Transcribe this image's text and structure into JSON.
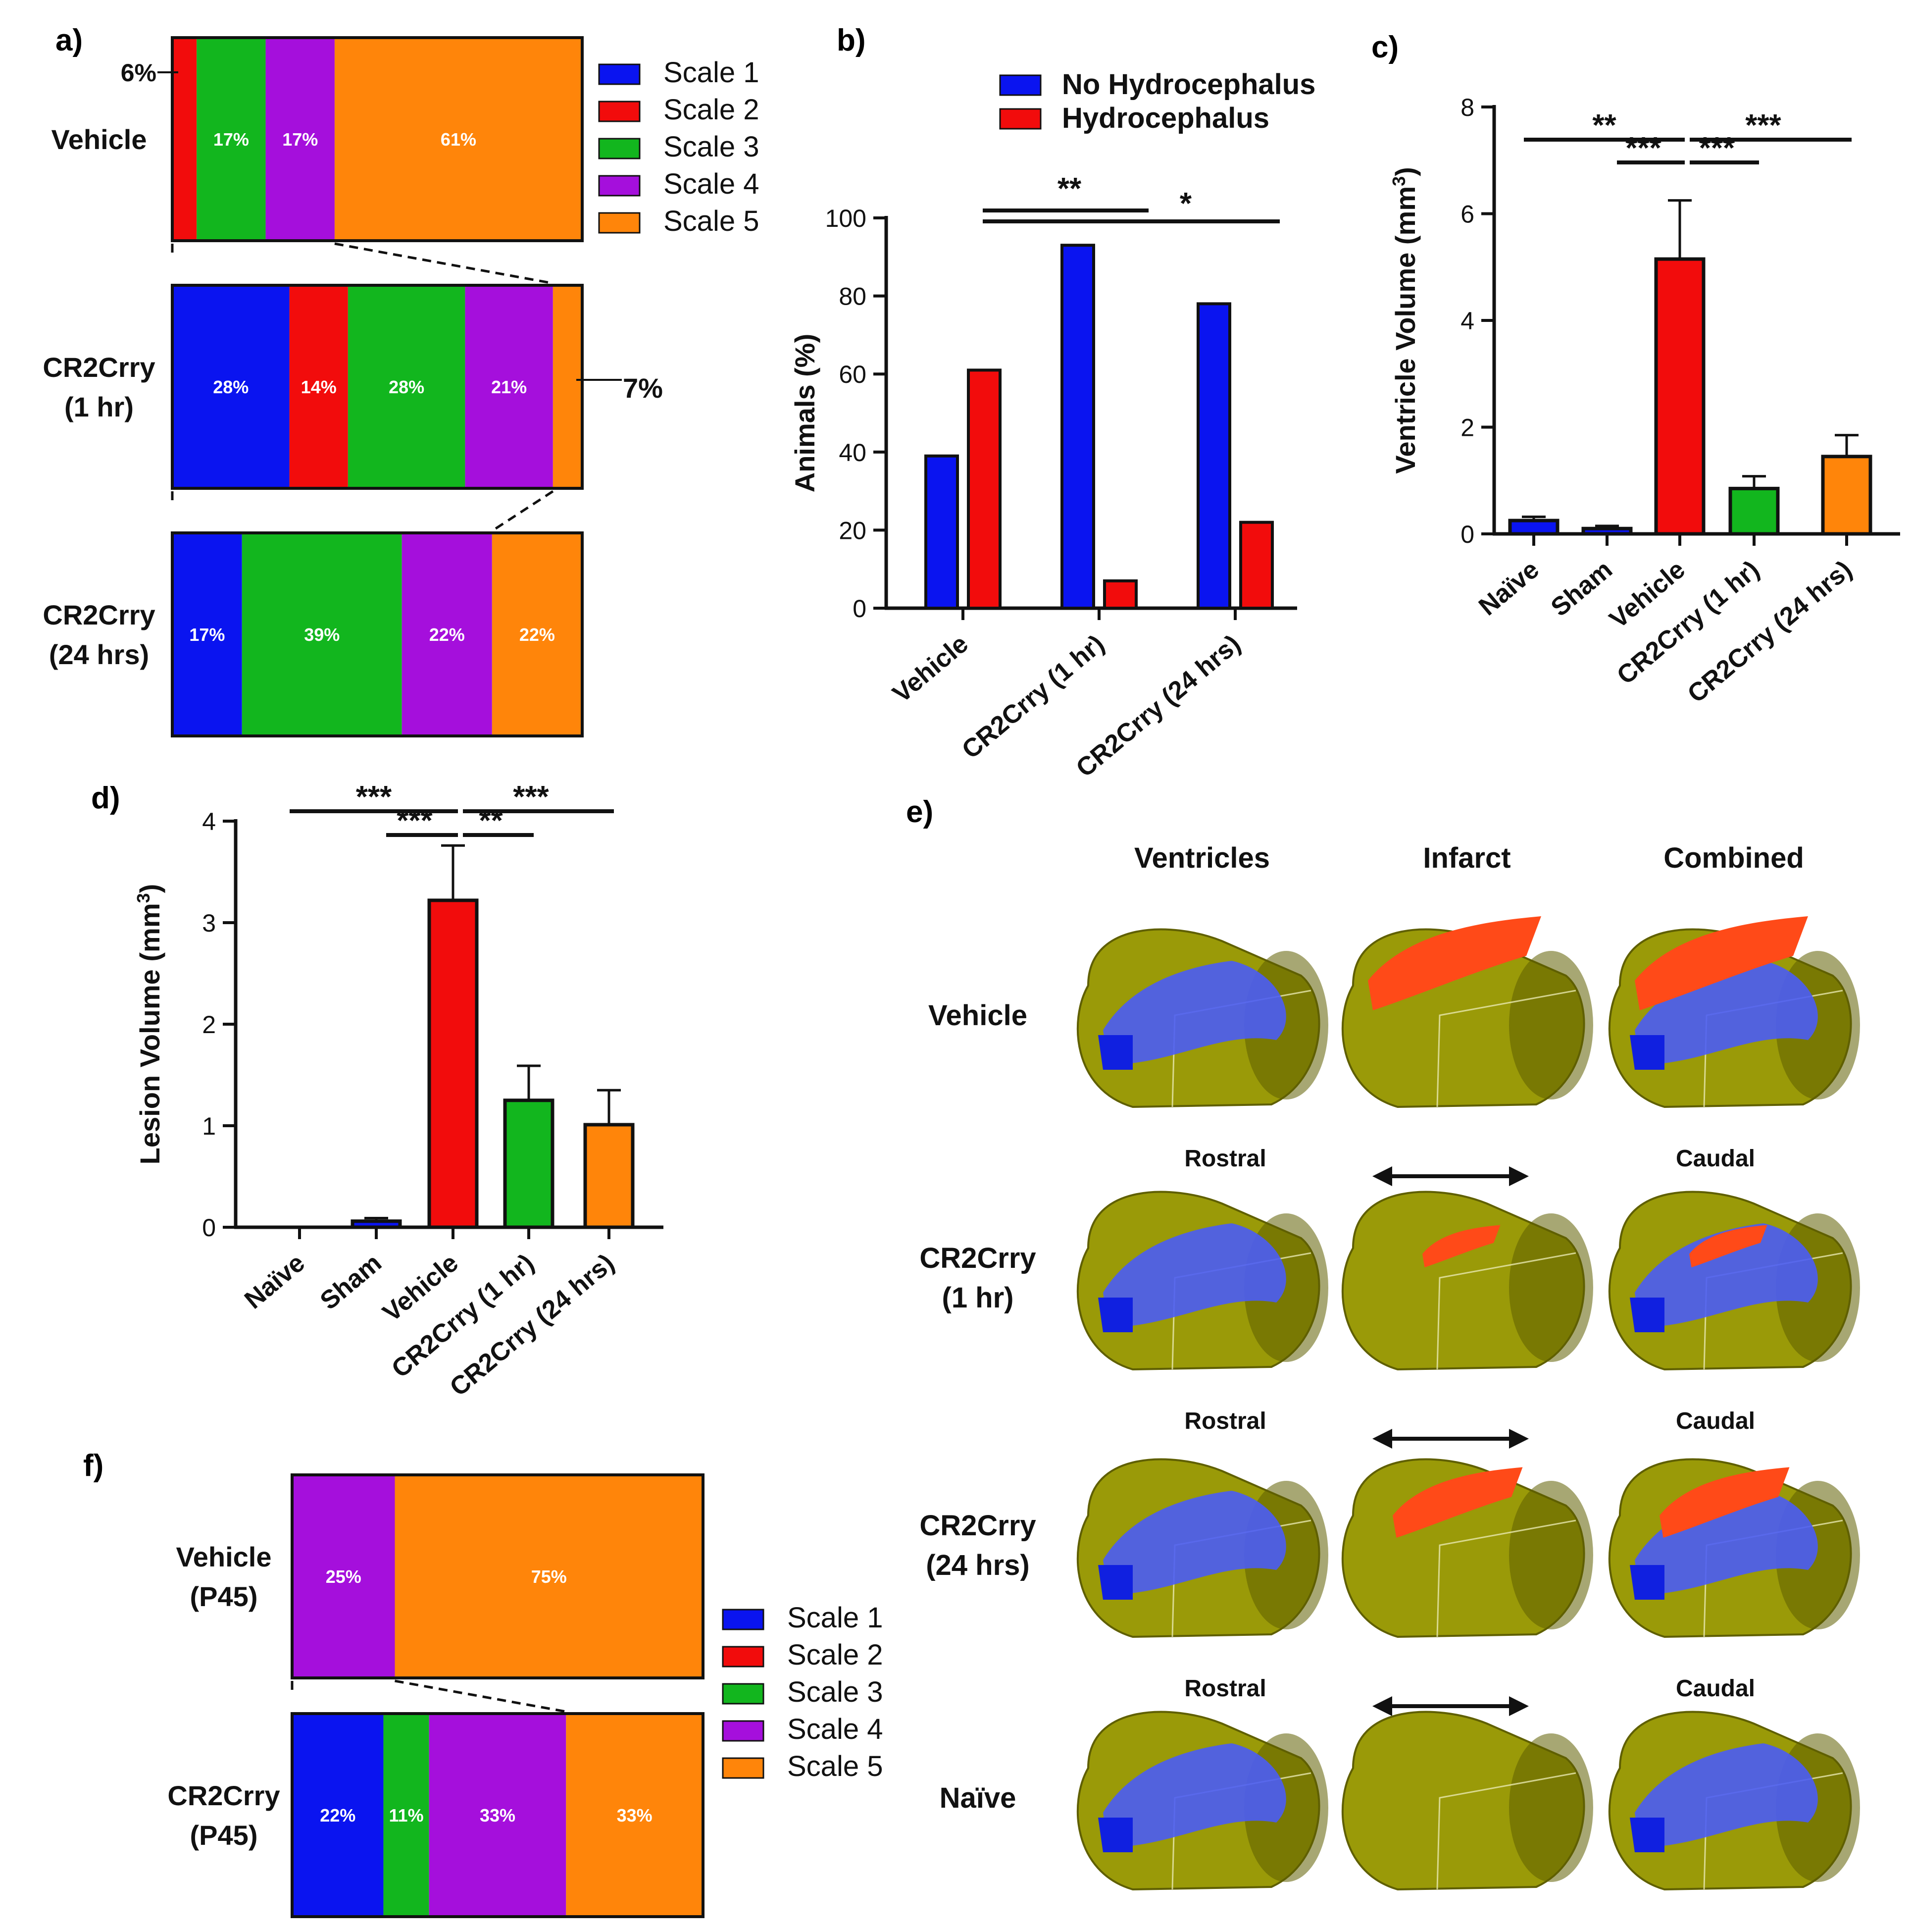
{
  "colors": {
    "scale1": "#0a14f0",
    "scale2": "#f20c0c",
    "scale3": "#12b61e",
    "scale4": "#a50fdc",
    "scale5": "#ff850a",
    "no_hydro": "#0a14f0",
    "hydro": "#f20c0c",
    "axis": "#111111",
    "brain": "#9a9a08",
    "brain_dark": "#5f5f00",
    "ventricle": "#4a5cf5",
    "infarct": "#ff4a18"
  },
  "panels": {
    "a": "a)",
    "b": "b)",
    "c": "c)",
    "d": "d)",
    "e": "e)",
    "f": "f)"
  },
  "chart_data": [
    {
      "id": "a",
      "type": "bar",
      "orientation": "horizontal-stacked-100",
      "legend": [
        "Scale 1",
        "Scale 2",
        "Scale 3",
        "Scale 4",
        "Scale 5"
      ],
      "legend_position": "right",
      "rows": [
        {
          "label": [
            "Vehicle"
          ],
          "values": [
            0,
            6,
            17,
            17,
            61
          ],
          "labels": [
            "",
            "",
            "17%",
            "17%",
            "61%"
          ],
          "callouts": [
            {
              "text": "6%",
              "side": "left"
            }
          ]
        },
        {
          "label": [
            "CR2Crry",
            "(1 hr)"
          ],
          "values": [
            28,
            14,
            28,
            21,
            7
          ],
          "labels": [
            "28%",
            "14%",
            "28%",
            "21%",
            ""
          ],
          "callouts": [
            {
              "text": "7%",
              "side": "right"
            }
          ]
        },
        {
          "label": [
            "CR2Crry",
            "(24 hrs)"
          ],
          "values": [
            17,
            0,
            39,
            22,
            22
          ],
          "labels": [
            "17%",
            "",
            "39%",
            "22%",
            "22%"
          ],
          "callouts": []
        }
      ]
    },
    {
      "id": "b",
      "type": "bar",
      "title": "",
      "xlabel": "",
      "ylabel": "Animals (%)",
      "ylim": [
        0,
        100
      ],
      "yticks": [
        0,
        20,
        40,
        60,
        80,
        100
      ],
      "categories": [
        "Vehicle",
        "CR2Crry (1 hr)",
        "CR2Crry (24 hrs)"
      ],
      "series": [
        {
          "name": "No Hydrocephalus",
          "values": [
            39,
            93,
            78
          ]
        },
        {
          "name": "Hydrocephalus",
          "values": [
            61,
            7,
            22
          ]
        }
      ],
      "legend_position": "top",
      "significance": [
        {
          "from": 0,
          "to": 1,
          "label": "**"
        },
        {
          "from": 0,
          "to": 2,
          "label": "*"
        }
      ]
    },
    {
      "id": "c",
      "type": "bar",
      "ylabel": "Ventricle Volume (mm",
      "ylabel_sup": "3",
      "ylabel_end": ")",
      "ylim": [
        0,
        8
      ],
      "yticks": [
        0,
        2,
        4,
        6,
        8
      ],
      "categories": [
        "Naïve",
        "Sham",
        "Vehicle",
        "CR2Crry (1 hr)",
        "CR2Crry (24 hrs)"
      ],
      "values": [
        0.25,
        0.1,
        5.15,
        0.85,
        1.45
      ],
      "errors": [
        0.07,
        0.05,
        1.1,
        0.23,
        0.4
      ],
      "bar_colors": [
        "scale1",
        "scale1",
        "hydro",
        "scale3",
        "scale5"
      ],
      "significance": [
        {
          "from": 0,
          "to": 2,
          "label": "**",
          "level": 2
        },
        {
          "from": 1,
          "to": 2,
          "label": "***",
          "level": 1
        },
        {
          "from": 2,
          "to": 3,
          "label": "***",
          "level": 1
        },
        {
          "from": 2,
          "to": 4,
          "label": "***",
          "level": 2
        }
      ]
    },
    {
      "id": "d",
      "type": "bar",
      "ylabel": "Lesion Volume (mm",
      "ylabel_sup": "3",
      "ylabel_end": ")",
      "ylim": [
        0,
        4
      ],
      "yticks": [
        0,
        1,
        2,
        3,
        4
      ],
      "categories": [
        "Naïve",
        "Sham",
        "Vehicle",
        "CR2Crry (1 hr)",
        "CR2Crry (24 hrs)"
      ],
      "values": [
        0,
        0.06,
        3.22,
        1.25,
        1.01
      ],
      "errors": [
        0,
        0.03,
        0.54,
        0.34,
        0.34
      ],
      "bar_colors": [
        "scale1",
        "scale1",
        "hydro",
        "scale3",
        "scale5"
      ],
      "significance": [
        {
          "from": 0,
          "to": 2,
          "label": "***",
          "level": 2
        },
        {
          "from": 1,
          "to": 2,
          "label": "***",
          "level": 1
        },
        {
          "from": 2,
          "to": 3,
          "label": "**",
          "level": 1
        },
        {
          "from": 2,
          "to": 4,
          "label": "***",
          "level": 2
        }
      ]
    },
    {
      "id": "f",
      "type": "bar",
      "orientation": "horizontal-stacked-100",
      "legend": [
        "Scale 1",
        "Scale 2",
        "Scale 3",
        "Scale 4",
        "Scale 5"
      ],
      "legend_position": "right",
      "rows": [
        {
          "label": [
            "Vehicle",
            "(P45)"
          ],
          "values": [
            0,
            0,
            0,
            25,
            75
          ],
          "labels": [
            "",
            "",
            "",
            "25%",
            "75%"
          ],
          "callouts": []
        },
        {
          "label": [
            "CR2Crry",
            "(P45)"
          ],
          "values": [
            22,
            0,
            11,
            33,
            33
          ],
          "labels": [
            "22%",
            "",
            "11%",
            "33%",
            "33%"
          ],
          "callouts": []
        }
      ]
    }
  ],
  "panel_e": {
    "columns": [
      "Ventricles",
      "Infarct",
      "Combined"
    ],
    "rows": [
      {
        "label": [
          "Vehicle"
        ],
        "ventricles": true,
        "infarct": "large"
      },
      {
        "label": [
          "CR2Crry",
          "(1 hr)"
        ],
        "ventricles": true,
        "infarct": "small"
      },
      {
        "label": [
          "CR2Crry",
          "(24 hrs)"
        ],
        "ventricles": true,
        "infarct": "medium"
      },
      {
        "label": [
          "Naïve"
        ],
        "ventricles": true,
        "infarct": "none"
      }
    ],
    "axis_left": "Rostral",
    "axis_right": "Caudal"
  }
}
